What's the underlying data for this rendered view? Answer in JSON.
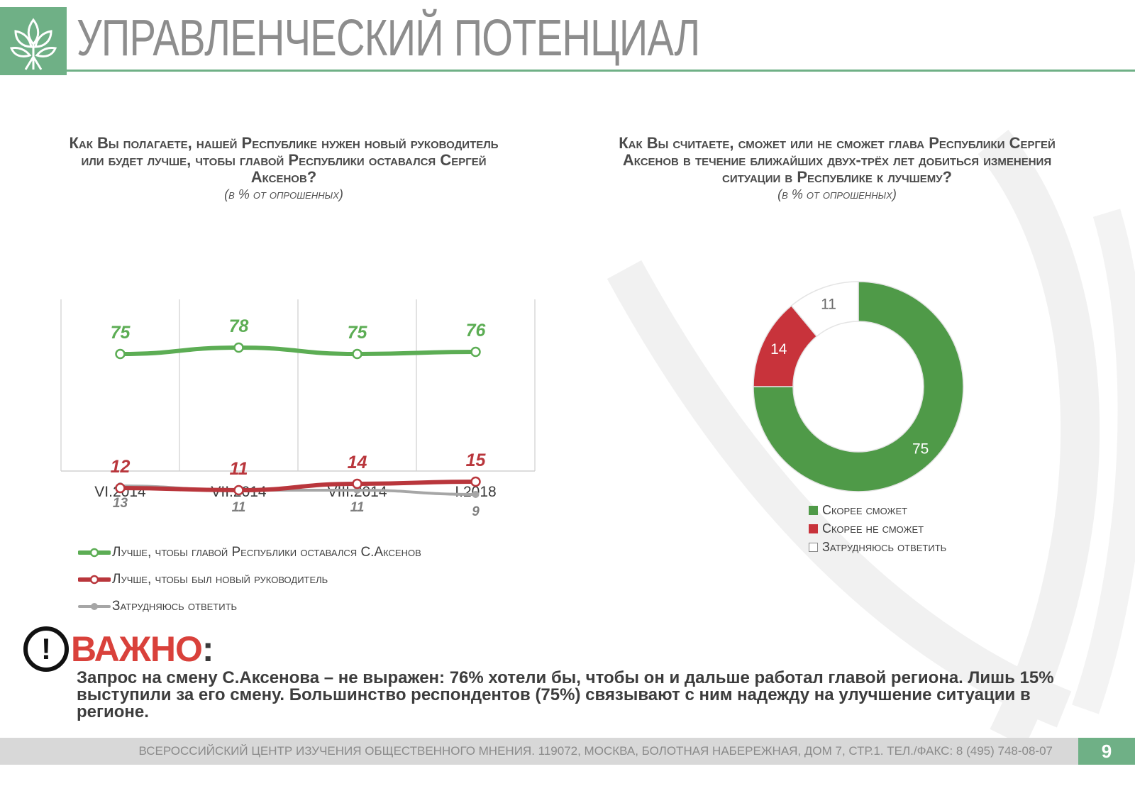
{
  "header": {
    "title": "УПРАВЛЕНЧЕСКИЙ ПОТЕНЦИАЛ"
  },
  "left_chart": {
    "question": "Как Вы полагаете, нашей Республике нужен новый руководитель или будет лучше, чтобы главой Республики оставался Сергей Аксенов?",
    "note": "(в % от опрошенных)",
    "legend": [
      {
        "label": "Лучше, чтобы главой Республики оставался С.Аксенов",
        "color": "#5cad54"
      },
      {
        "label": "Лучше, чтобы был новый руководитель",
        "color": "#b9363c"
      },
      {
        "label": "Затрудняюсь ответить",
        "color": "#a6a6a6"
      }
    ]
  },
  "right_chart": {
    "question": "Как Вы считаете, сможет или не сможет глава Республики Сергей Аксенов в течение ближайших двух-трёх лет добиться изменения ситуации в Республике к лучшему?",
    "note": "(в % от опрошенных)",
    "legend": [
      {
        "label": "Скорее сможет",
        "color": "#4f9a48"
      },
      {
        "label": "Скорее не сможет",
        "color": "#c8333b"
      },
      {
        "label": "Затрудняюсь ответить",
        "color": "#ffffff"
      }
    ]
  },
  "chart_data": [
    {
      "type": "line",
      "categories": [
        "VI.2014",
        "VII.2014",
        "VIII.2014",
        "I.2018"
      ],
      "series": [
        {
          "name": "Лучше, чтобы главой Республики оставался С.Аксенов",
          "values": [
            75,
            78,
            75,
            76
          ],
          "color": "#5cad54"
        },
        {
          "name": "Лучше, чтобы был новый руководитель",
          "values": [
            12,
            11,
            14,
            15
          ],
          "color": "#b9363c"
        },
        {
          "name": "Затрудняюсь ответить",
          "values": [
            13,
            11,
            11,
            9
          ],
          "color": "#a6a6a6"
        }
      ],
      "ylim": [
        0,
        100
      ],
      "grid": "vertical",
      "legend": "bottom"
    },
    {
      "type": "pie",
      "donut": true,
      "labels": [
        "Скорее сможет",
        "Скорее не сможет",
        "Затрудняюсь ответить"
      ],
      "values": [
        75,
        14,
        11
      ],
      "colors": [
        "#4f9a48",
        "#c8333b",
        "#ffffff"
      ],
      "legend": "bottom"
    }
  ],
  "important": {
    "mark": "!",
    "word": "ВАЖНО",
    "colon": ":",
    "text": "Запрос на смену С.Аксенова – не выражен: 76% хотели бы, чтобы он и дальше работал главой региона. Лишь 15% выступили за его смену. Большинство респондентов  (75%) связывают с ним надежду на улучшение ситуации в регионе."
  },
  "footer": {
    "text": "ВСЕРОССИЙСКИЙ ЦЕНТР ИЗУЧЕНИЯ ОБЩЕСТВЕННОГО МНЕНИЯ. 119072, МОСКВА, БОЛОТНАЯ НАБЕРЕЖНАЯ, ДОМ 7, СТР.1. ТЕЛ./ФАКС: 8 (495) 748-08-07",
    "page": "9"
  }
}
